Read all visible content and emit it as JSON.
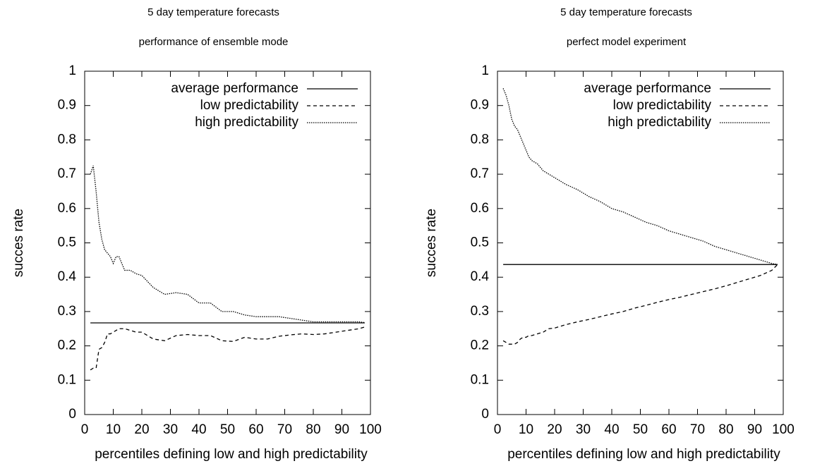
{
  "chart_data": [
    {
      "type": "line",
      "title": "5 day temperature forecasts",
      "subtitle": "performance of ensemble mode",
      "xlabel": "percentiles defining low and high predictability",
      "ylabel": "succes rate",
      "xlim": [
        0,
        100
      ],
      "ylim": [
        0,
        1
      ],
      "xticks": [
        0,
        10,
        20,
        30,
        40,
        50,
        60,
        70,
        80,
        90,
        100
      ],
      "yticks": [
        0,
        0.1,
        0.2,
        0.3,
        0.4,
        0.5,
        0.6,
        0.7,
        0.8,
        0.9,
        1
      ],
      "legend": "top-right",
      "x": [
        2,
        3,
        4,
        5,
        6,
        7,
        8,
        9,
        10,
        11,
        12,
        14,
        16,
        18,
        20,
        24,
        28,
        32,
        36,
        40,
        44,
        48,
        52,
        56,
        60,
        64,
        68,
        72,
        76,
        80,
        84,
        88,
        92,
        96,
        98
      ],
      "series": [
        {
          "name": "average performance",
          "color": "#000000",
          "style": "solid",
          "values": [
            0.267,
            0.267,
            0.267,
            0.267,
            0.267,
            0.267,
            0.267,
            0.267,
            0.267,
            0.267,
            0.267,
            0.267,
            0.267,
            0.267,
            0.267,
            0.267,
            0.267,
            0.267,
            0.267,
            0.267,
            0.267,
            0.267,
            0.267,
            0.267,
            0.267,
            0.267,
            0.267,
            0.267,
            0.267,
            0.267,
            0.267,
            0.267,
            0.267,
            0.267,
            0.267
          ]
        },
        {
          "name": "low predictability",
          "color": "#000000",
          "style": "dashed",
          "values": [
            0.13,
            0.135,
            0.135,
            0.19,
            0.195,
            0.21,
            0.235,
            0.235,
            0.24,
            0.245,
            0.25,
            0.25,
            0.245,
            0.24,
            0.24,
            0.22,
            0.215,
            0.23,
            0.233,
            0.23,
            0.23,
            0.215,
            0.213,
            0.225,
            0.22,
            0.22,
            0.228,
            0.232,
            0.235,
            0.233,
            0.235,
            0.24,
            0.245,
            0.25,
            0.255
          ]
        },
        {
          "name": "high predictability",
          "color": "#000000",
          "style": "dotted",
          "values": [
            0.7,
            0.725,
            0.65,
            0.56,
            0.51,
            0.48,
            0.47,
            0.46,
            0.44,
            0.46,
            0.46,
            0.42,
            0.42,
            0.41,
            0.405,
            0.37,
            0.35,
            0.355,
            0.35,
            0.325,
            0.325,
            0.3,
            0.3,
            0.29,
            0.285,
            0.285,
            0.285,
            0.28,
            0.275,
            0.27,
            0.27,
            0.27,
            0.27,
            0.27,
            0.268
          ]
        }
      ]
    },
    {
      "type": "line",
      "title": "5 day temperature forecasts",
      "subtitle": "perfect model experiment",
      "xlabel": "percentiles defining low and high predictability",
      "ylabel": "succes rate",
      "xlim": [
        0,
        100
      ],
      "ylim": [
        0,
        1
      ],
      "xticks": [
        0,
        10,
        20,
        30,
        40,
        50,
        60,
        70,
        80,
        90,
        100
      ],
      "yticks": [
        0,
        0.1,
        0.2,
        0.3,
        0.4,
        0.5,
        0.6,
        0.7,
        0.8,
        0.9,
        1
      ],
      "legend": "top-right",
      "x": [
        2,
        3,
        4,
        5,
        6,
        7,
        8,
        9,
        10,
        11,
        12,
        14,
        16,
        18,
        20,
        24,
        28,
        32,
        36,
        40,
        44,
        48,
        52,
        56,
        60,
        64,
        68,
        72,
        76,
        80,
        84,
        88,
        92,
        96,
        98
      ],
      "series": [
        {
          "name": "average performance",
          "color": "#000000",
          "style": "solid",
          "values": [
            0.437,
            0.437,
            0.437,
            0.437,
            0.437,
            0.437,
            0.437,
            0.437,
            0.437,
            0.437,
            0.437,
            0.437,
            0.437,
            0.437,
            0.437,
            0.437,
            0.437,
            0.437,
            0.437,
            0.437,
            0.437,
            0.437,
            0.437,
            0.437,
            0.437,
            0.437,
            0.437,
            0.437,
            0.437,
            0.437,
            0.437,
            0.437,
            0.437,
            0.437,
            0.437
          ]
        },
        {
          "name": "low predictability",
          "color": "#000000",
          "style": "dashed",
          "values": [
            0.215,
            0.21,
            0.205,
            0.205,
            0.205,
            0.21,
            0.22,
            0.225,
            0.225,
            0.23,
            0.23,
            0.235,
            0.24,
            0.25,
            0.252,
            0.262,
            0.27,
            0.277,
            0.285,
            0.293,
            0.3,
            0.31,
            0.318,
            0.327,
            0.335,
            0.342,
            0.35,
            0.358,
            0.366,
            0.375,
            0.385,
            0.395,
            0.405,
            0.42,
            0.437
          ]
        },
        {
          "name": "high predictability",
          "color": "#000000",
          "style": "dotted",
          "values": [
            0.95,
            0.93,
            0.9,
            0.86,
            0.84,
            0.83,
            0.81,
            0.79,
            0.77,
            0.75,
            0.74,
            0.73,
            0.71,
            0.7,
            0.69,
            0.67,
            0.655,
            0.635,
            0.62,
            0.6,
            0.59,
            0.575,
            0.56,
            0.55,
            0.535,
            0.525,
            0.515,
            0.505,
            0.49,
            0.48,
            0.47,
            0.46,
            0.45,
            0.44,
            0.437
          ]
        }
      ]
    }
  ]
}
